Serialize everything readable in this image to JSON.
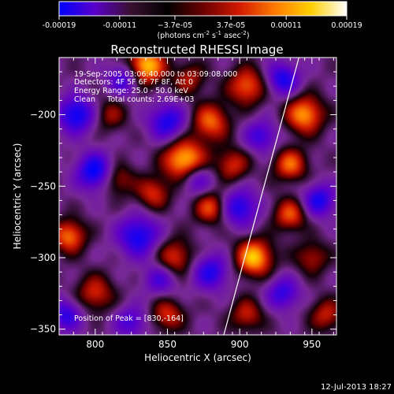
{
  "chart_data": {
    "type": "heatmap",
    "title": "Reconstructed RHESSI Image",
    "xlabel": "Heliocentric X (arcsec)",
    "ylabel": "Heliocentric Y (arcsec)",
    "xlim": [
      775,
      967
    ],
    "ylim": [
      -354,
      -160
    ],
    "x_ticks": [
      800,
      850,
      900,
      950
    ],
    "y_ticks": [
      -200,
      -250,
      -300,
      -350
    ],
    "x_tick_labels": [
      "800",
      "850",
      "900",
      "950"
    ],
    "y_tick_labels": [
      "−200",
      "−250",
      "−300",
      "−350"
    ],
    "colorbar": {
      "ticks": [
        -0.00019,
        -0.00011,
        -3.7e-05,
        3.7e-05,
        0.00011,
        0.00019
      ],
      "tick_labels": [
        "-0.00019",
        "-0.00011",
        "−3.7e-05",
        "3.7e-05",
        "0.00011",
        "0.00019"
      ],
      "units_prefix": "(photons cm",
      "units_sup1": "-2",
      "units_mid": " s",
      "units_sup2": "-1",
      "units_mid2": " asec",
      "units_sup3": "-2",
      "units_suffix": ")",
      "colors": [
        "#0000ff",
        "#5a00c8",
        "#3a1030",
        "#000000",
        "#6a0000",
        "#d01800",
        "#ff7a00",
        "#ffd000",
        "#ffffff"
      ]
    },
    "annotations": [
      "19-Sep-2005 03:06:40.000 to 03:09:08.000",
      "Detectors: 4F 5F 6F 7F 8F, Att 0",
      "Energy Range: 25.0 - 50.0 keV",
      "Clean     Total counts: 2.69E+03"
    ],
    "peak_label": "Position of Peak = [830,-164]",
    "limb_line": [
      [
        941,
        -160
      ],
      [
        889,
        -354
      ]
    ],
    "sources": [
      {
        "x": 835,
        "y": -166,
        "amp": 1.0,
        "s": 9
      },
      {
        "x": 862,
        "y": -232,
        "amp": 1.0,
        "s": 10
      },
      {
        "x": 910,
        "y": -300,
        "amp": 0.95,
        "s": 9
      },
      {
        "x": 945,
        "y": -200,
        "amp": 0.85,
        "s": 9
      },
      {
        "x": 782,
        "y": -285,
        "amp": 0.75,
        "s": 8
      },
      {
        "x": 905,
        "y": -180,
        "amp": 0.7,
        "s": 9
      },
      {
        "x": 880,
        "y": -205,
        "amp": 0.7,
        "s": 9
      },
      {
        "x": 935,
        "y": -235,
        "amp": 0.7,
        "s": 8
      },
      {
        "x": 880,
        "y": -265,
        "amp": 0.65,
        "s": 8
      },
      {
        "x": 935,
        "y": -270,
        "amp": 0.65,
        "s": 8
      },
      {
        "x": 855,
        "y": -300,
        "amp": 0.6,
        "s": 9
      },
      {
        "x": 840,
        "y": -255,
        "amp": 0.55,
        "s": 8
      },
      {
        "x": 800,
        "y": -325,
        "amp": 0.55,
        "s": 9
      },
      {
        "x": 850,
        "y": -340,
        "amp": 0.55,
        "s": 8
      },
      {
        "x": 815,
        "y": -245,
        "amp": 0.5,
        "s": 8
      },
      {
        "x": 895,
        "y": -235,
        "amp": 0.55,
        "s": 8
      },
      {
        "x": 960,
        "y": -340,
        "amp": 0.5,
        "s": 8
      },
      {
        "x": 905,
        "y": -340,
        "amp": 0.5,
        "s": 8
      },
      {
        "x": 950,
        "y": -300,
        "amp": 0.45,
        "s": 8
      },
      {
        "x": 810,
        "y": -200,
        "amp": 0.4,
        "s": 8
      },
      {
        "x": 865,
        "y": -175,
        "amp": 0.45,
        "s": 8
      },
      {
        "x": 800,
        "y": -240,
        "amp": -0.85,
        "s": 9
      },
      {
        "x": 787,
        "y": -200,
        "amp": -0.8,
        "s": 9
      },
      {
        "x": 830,
        "y": -285,
        "amp": -0.75,
        "s": 10
      },
      {
        "x": 850,
        "y": -205,
        "amp": -0.7,
        "s": 9
      },
      {
        "x": 900,
        "y": -265,
        "amp": -0.7,
        "s": 9
      },
      {
        "x": 955,
        "y": -260,
        "amp": -0.7,
        "s": 8
      },
      {
        "x": 930,
        "y": -175,
        "amp": -0.7,
        "s": 8
      },
      {
        "x": 820,
        "y": -175,
        "amp": -0.6,
        "s": 8
      },
      {
        "x": 880,
        "y": -310,
        "amp": -0.65,
        "s": 9
      },
      {
        "x": 930,
        "y": -325,
        "amp": -0.6,
        "s": 8
      },
      {
        "x": 780,
        "y": -340,
        "amp": -0.6,
        "s": 8
      },
      {
        "x": 870,
        "y": -245,
        "amp": -0.55,
        "s": 8
      },
      {
        "x": 915,
        "y": -215,
        "amp": -0.55,
        "s": 8
      },
      {
        "x": 825,
        "y": -345,
        "amp": -0.5,
        "s": 8
      },
      {
        "x": 845,
        "y": -315,
        "amp": -0.5,
        "s": 8
      }
    ]
  },
  "timestamp": "12-Jul-2013 18:27"
}
